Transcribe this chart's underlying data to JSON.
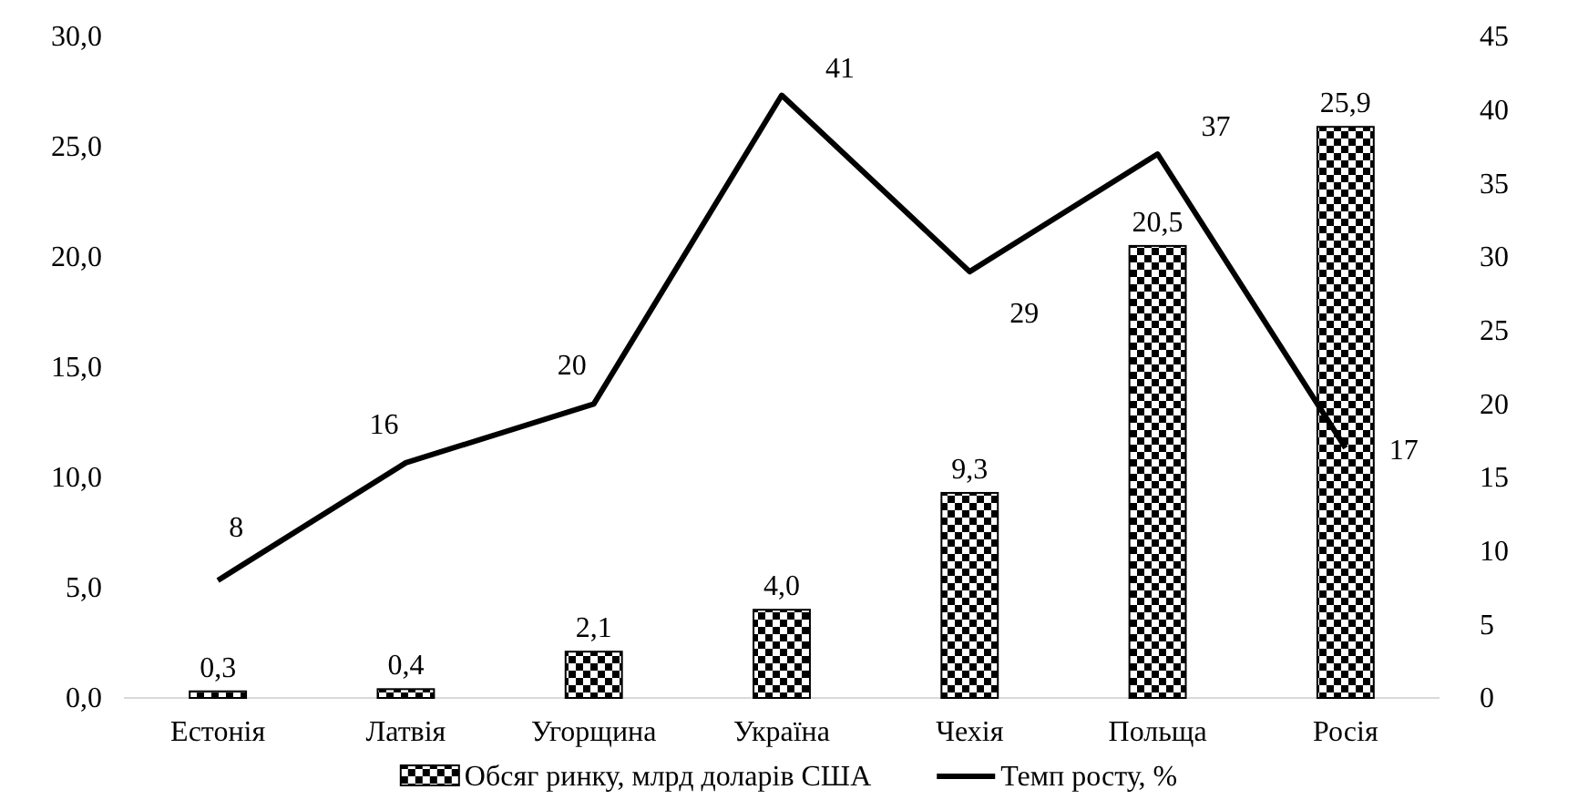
{
  "chart_data": {
    "type": "bar",
    "categories": [
      "Естонія",
      "Латвія",
      "Угорщина",
      "Україна",
      "Чехія",
      "Польща",
      "Росія"
    ],
    "series": [
      {
        "name": "Обсяг ринку, млрд доларів США",
        "color": "#000000",
        "values": [
          0.3,
          0.4,
          2.1,
          4.0,
          9.3,
          20.5,
          25.9
        ],
        "value_labels": [
          "0,3",
          "0,4",
          "2,1",
          "4,0",
          "9,3",
          "20,5",
          "25,9"
        ]
      },
      {
        "name": "Темп росту, %",
        "type": "line",
        "axis": "y2",
        "color": "#000000",
        "values": [
          8,
          16,
          20,
          41,
          29,
          37,
          17
        ],
        "value_labels": [
          "8",
          "16",
          "20",
          "41",
          "29",
          "37",
          "17"
        ]
      }
    ],
    "ylim": [
      0,
      30
    ],
    "yticks": [
      {
        "value": 0,
        "label": "0,0"
      },
      {
        "value": 5,
        "label": "5,0"
      },
      {
        "value": 10,
        "label": "10,0"
      },
      {
        "value": 15,
        "label": "15,0"
      },
      {
        "value": 20,
        "label": "20,0"
      },
      {
        "value": 25,
        "label": "25,0"
      },
      {
        "value": 30,
        "label": "30,0"
      }
    ],
    "y2lim": [
      0,
      45
    ],
    "y2ticks": [
      0,
      5,
      10,
      15,
      20,
      25,
      30,
      35,
      40,
      45
    ],
    "grid": false,
    "legend": "bottom",
    "marker": "none",
    "line_style": "solid"
  }
}
